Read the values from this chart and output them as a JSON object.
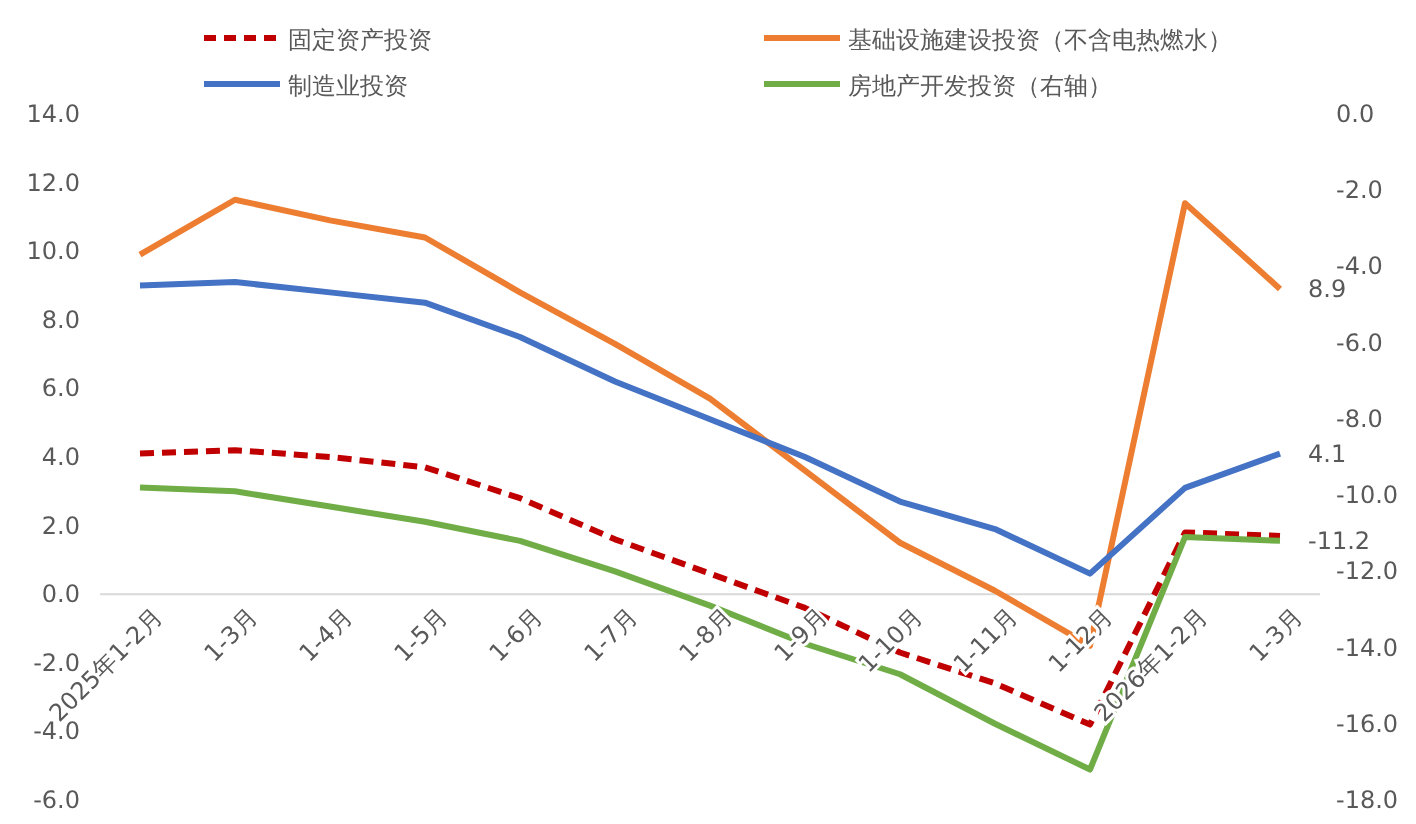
{
  "chart_data": {
    "type": "line",
    "categories": [
      "2025年1-2月",
      "1-3月",
      "1-4月",
      "1-5月",
      "1-6月",
      "1-7月",
      "1-8月",
      "1-9月",
      "1-10月",
      "1-11月",
      "1-12月",
      "2026年1-2月",
      "1-3月"
    ],
    "series": [
      {
        "name": "固定资产投资",
        "color": "#c00000",
        "line_style": "dashed",
        "values": [
          4.1,
          4.2,
          4.0,
          3.7,
          2.8,
          1.6,
          0.6,
          -0.4,
          -1.7,
          -2.6,
          -3.8,
          1.8,
          1.7
        ],
        "value_labels": [
          null,
          null,
          null,
          null,
          null,
          null,
          null,
          null,
          null,
          null,
          null,
          null,
          null
        ]
      },
      {
        "name": "基础设施建设投资（不含电热燃水）",
        "color": "#ed7d31",
        "values": [
          9.9,
          11.5,
          10.9,
          10.4,
          8.8,
          7.3,
          5.7,
          3.6,
          1.5,
          0.1,
          -1.5,
          11.4,
          8.9
        ],
        "value_labels": [
          null,
          null,
          null,
          null,
          null,
          null,
          null,
          null,
          null,
          null,
          null,
          null,
          "8.9"
        ]
      },
      {
        "name": "制造业投资",
        "color": "#4472c4",
        "values": [
          9.0,
          9.1,
          8.8,
          8.5,
          7.5,
          6.2,
          5.1,
          4.0,
          2.7,
          1.9,
          0.6,
          3.1,
          4.1
        ],
        "value_labels": [
          null,
          null,
          null,
          null,
          null,
          null,
          null,
          null,
          null,
          null,
          null,
          null,
          "4.1"
        ]
      },
      {
        "name": "房地产开发投资（右轴）",
        "color": "#70ad47",
        "axis": "y2",
        "values": [
          -9.8,
          -9.9,
          -10.3,
          -10.7,
          -11.2,
          -12.0,
          -12.9,
          -13.9,
          -14.7,
          -16.0,
          -17.2,
          -11.1,
          -11.2
        ],
        "value_labels": [
          null,
          null,
          null,
          null,
          null,
          null,
          null,
          null,
          null,
          null,
          null,
          null,
          "-11.2"
        ]
      }
    ],
    "ylim": [
      -6,
      14
    ],
    "yticks": [
      {
        "value": -6,
        "label": "-6.0"
      },
      {
        "value": -4,
        "label": "-4.0"
      },
      {
        "value": -2,
        "label": "-2.0"
      },
      {
        "value": 0,
        "label": "0.0"
      },
      {
        "value": 2,
        "label": "2.0"
      },
      {
        "value": 4,
        "label": "4.0"
      },
      {
        "value": 6,
        "label": "6.0"
      },
      {
        "value": 8,
        "label": "8.0"
      },
      {
        "value": 10,
        "label": "10.0"
      },
      {
        "value": 12,
        "label": "12.0"
      },
      {
        "value": 14,
        "label": "14.0"
      }
    ],
    "y2lim": [
      -18,
      0
    ],
    "y2ticks": [
      {
        "value": -18,
        "label": "-18.0"
      },
      {
        "value": -16,
        "label": "-16.0"
      },
      {
        "value": -14,
        "label": "-14.0"
      },
      {
        "value": -12,
        "label": "-12.0"
      },
      {
        "value": -10,
        "label": "-10.0"
      },
      {
        "value": -8,
        "label": "-8.0"
      },
      {
        "value": -6,
        "label": "-6.0"
      },
      {
        "value": -4,
        "label": "-4.0"
      },
      {
        "value": -2,
        "label": "-2.0"
      },
      {
        "value": 0,
        "label": "0.0"
      }
    ],
    "legend": "top",
    "grid": false,
    "marker": "none"
  }
}
